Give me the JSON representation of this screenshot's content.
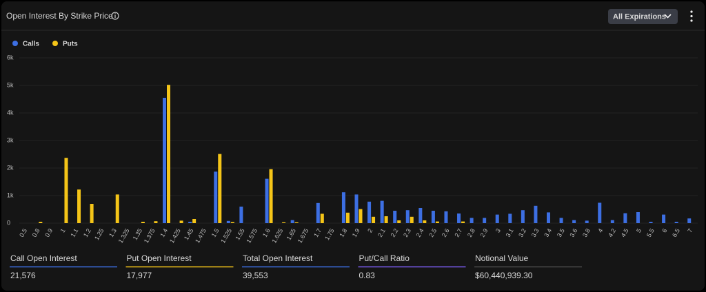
{
  "header": {
    "title": "Open Interest By Strike Price",
    "dropdown": "All Expirations"
  },
  "chart_data": {
    "type": "bar",
    "categories": [
      "0.5",
      "0.8",
      "0.9",
      "1",
      "1.1",
      "1.2",
      "1.25",
      "1.3",
      "1.325",
      "1.35",
      "1.375",
      "1.4",
      "1.425",
      "1.45",
      "1.475",
      "1.5",
      "1.525",
      "1.55",
      "1.575",
      "1.6",
      "1.625",
      "1.65",
      "1.675",
      "1.7",
      "1.75",
      "1.8",
      "1.9",
      "2",
      "2.1",
      "2.2",
      "2.3",
      "2.4",
      "2.5",
      "2.6",
      "2.7",
      "2.8",
      "2.9",
      "3",
      "3.1",
      "3.2",
      "3.3",
      "3.4",
      "3.5",
      "3.6",
      "3.8",
      "4",
      "4.2",
      "4.5",
      "5",
      "5.5",
      "6",
      "6.5",
      "7"
    ],
    "series": [
      {
        "name": "Calls",
        "color": "#3d6fe3",
        "values": [
          0,
          0,
          0,
          0,
          0,
          0,
          0,
          0,
          0,
          0,
          0,
          4550,
          0,
          50,
          0,
          1870,
          80,
          600,
          0,
          1610,
          0,
          110,
          0,
          730,
          0,
          1120,
          1040,
          780,
          810,
          450,
          470,
          550,
          450,
          430,
          350,
          190,
          190,
          310,
          340,
          470,
          630,
          390,
          190,
          110,
          90,
          740,
          110,
          360,
          400,
          50,
          310,
          50,
          170
        ]
      },
      {
        "name": "Puts",
        "color": "#f5c518",
        "values": [
          0,
          50,
          0,
          2370,
          1220,
          700,
          0,
          1040,
          0,
          50,
          70,
          5020,
          90,
          150,
          0,
          2510,
          40,
          0,
          0,
          1960,
          30,
          30,
          0,
          340,
          0,
          380,
          510,
          230,
          250,
          100,
          230,
          100,
          60,
          0,
          60,
          0,
          0,
          0,
          0,
          0,
          0,
          0,
          0,
          0,
          0,
          0,
          0,
          0,
          0,
          0,
          0,
          0,
          0
        ]
      }
    ],
    "ylim": [
      0,
      6000
    ],
    "yticks": [
      0,
      {
        "value": 1000,
        "label": "1k"
      },
      {
        "value": 2000,
        "label": "2k"
      },
      {
        "value": 3000,
        "label": "3k"
      },
      {
        "value": 4000,
        "label": "4k"
      },
      {
        "value": 5000,
        "label": "5k"
      },
      {
        "value": 6000,
        "label": "6k"
      }
    ],
    "grid": true
  },
  "stats": [
    {
      "label": "Call Open Interest",
      "value": "21,576",
      "color": "#3d6fe3"
    },
    {
      "label": "Put Open Interest",
      "value": "17,977",
      "color": "#f5c518"
    },
    {
      "label": "Total Open Interest",
      "value": "39,553",
      "color": "#3d6fe3"
    },
    {
      "label": "Put/Call Ratio",
      "value": "0.83",
      "color": "#7a5cf0"
    },
    {
      "label": "Notional Value",
      "value": "$60,440,939.30",
      "color": "#4a4a4a"
    }
  ]
}
